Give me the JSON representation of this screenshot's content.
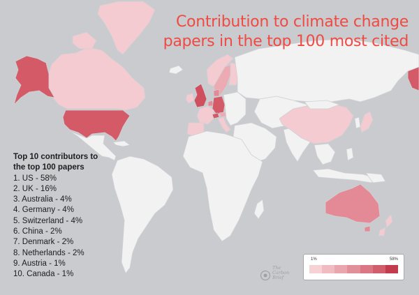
{
  "title_lines": [
    "Contribution to climate change",
    "papers in the top 100 most cited"
  ],
  "contributors": {
    "heading_lines": [
      "Top 10 contributors to",
      "the top 100 papers"
    ],
    "items": [
      "1. US - 58%",
      "2. UK - 16%",
      "3. Australia - 4%",
      "4. Germany - 4%",
      "5. Switzerland - 4%",
      "6. China - 2%",
      "7. Denmark - 2%",
      "8. Netherlands - 2%",
      "9. Austria - 1%",
      "10. Canada - 1%"
    ]
  },
  "legend": {
    "min_label": "1%",
    "max_label": "58%",
    "swatches": [
      "#f6d2d5",
      "#f0bcc2",
      "#eaa6ae",
      "#e38f99",
      "#db7784",
      "#d15e6d",
      "#c23c4d"
    ]
  },
  "watermark": {
    "lines": [
      "The",
      "Carbon",
      "Brief"
    ]
  },
  "colors": {
    "ocean": "#c9cbce",
    "land": "#f2f2f2",
    "title": "#ef4a43",
    "us": "#d45a68",
    "uk": "#cf4f5f",
    "tier_mid": "#e48a97",
    "tier_low": "#ecaab3",
    "tier_pale": "#f3cbd0"
  }
}
